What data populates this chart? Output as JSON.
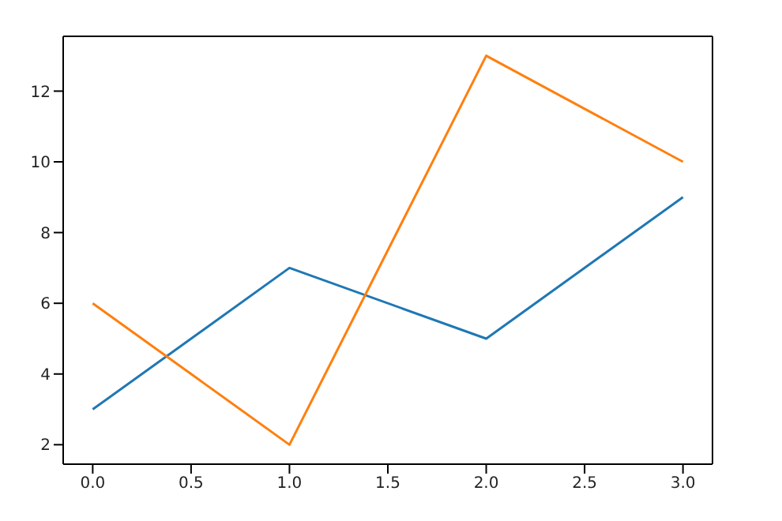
{
  "chart_data": {
    "type": "line",
    "x": [
      0,
      1,
      2,
      3
    ],
    "series": [
      {
        "color": "#1f77b4",
        "values": [
          3,
          7,
          5,
          9
        ]
      },
      {
        "color": "#ff7f0e",
        "values": [
          6,
          2,
          13,
          10
        ]
      }
    ],
    "xlim": [
      -0.15,
      3.15
    ],
    "xticks": [
      {
        "value": 0,
        "label": "0.0"
      },
      {
        "value": 0.5,
        "label": "0.5"
      },
      {
        "value": 1,
        "label": "1.0"
      },
      {
        "value": 1.5,
        "label": "1.5"
      },
      {
        "value": 2,
        "label": "2.0"
      },
      {
        "value": 2.5,
        "label": "2.5"
      },
      {
        "value": 3,
        "label": "3.0"
      }
    ],
    "ylim": [
      1.45,
      13.55
    ],
    "yticks": [
      2,
      4,
      6,
      8,
      10,
      12
    ],
    "grid": false,
    "marker": "none",
    "line_style": "solid"
  }
}
